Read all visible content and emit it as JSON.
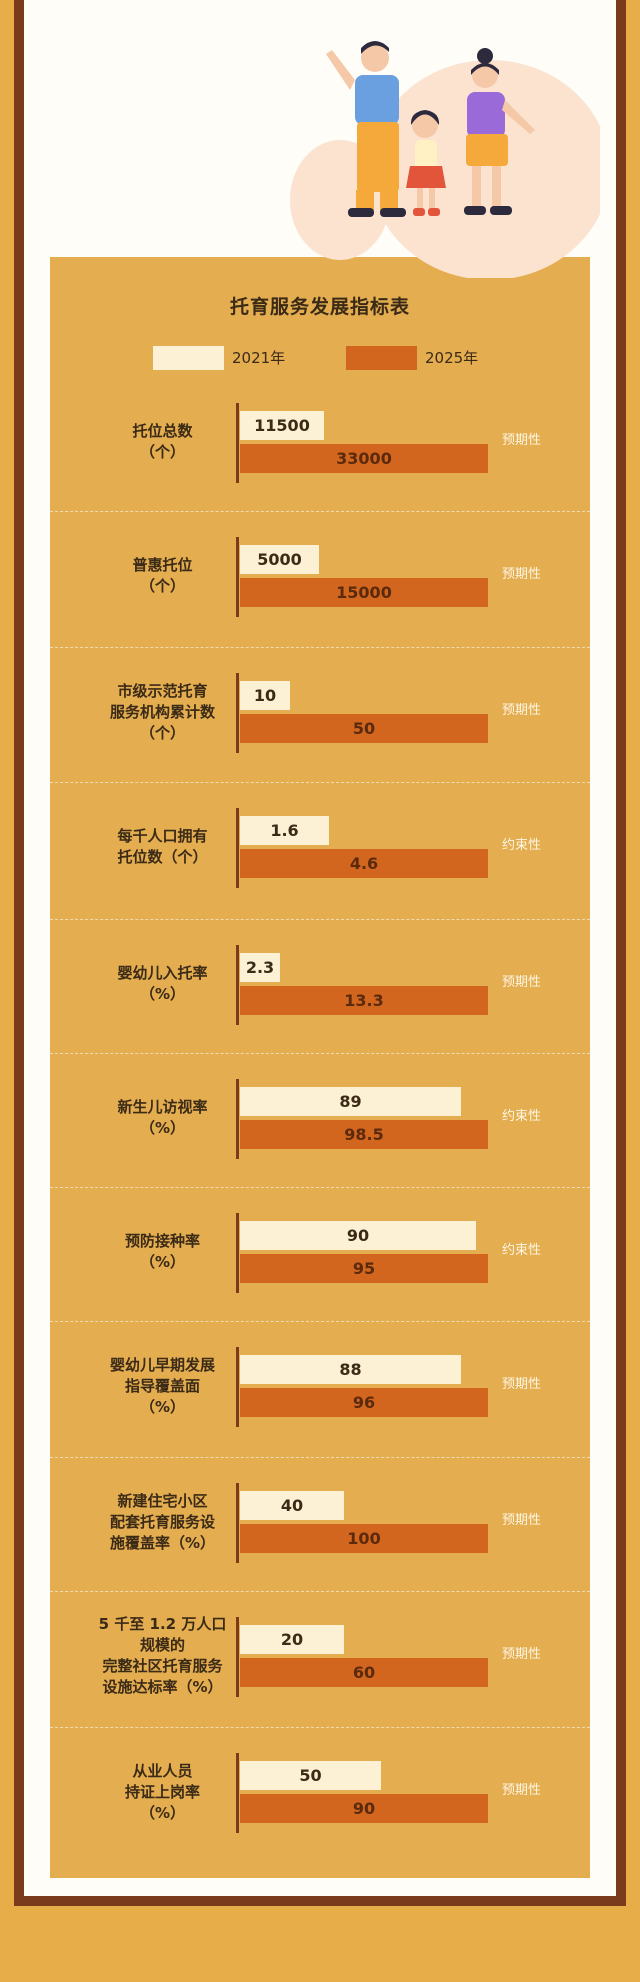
{
  "colors": {
    "background": "#e7ad48",
    "frame": "#7a3a1c",
    "paper": "#fffdf8",
    "panel": "#e3ad50",
    "bar_2021": "#fcf1d4",
    "bar_2025": "#d2661e"
  },
  "illustration": {
    "name": "family-illustration"
  },
  "chart_data": {
    "type": "bar",
    "title": "托育服务发展指标表",
    "legend": [
      "2021年",
      "2025年"
    ],
    "categories": [
      "托位总数\n（个）",
      "普惠托位\n（个）",
      "市级示范托育\n服务机构累计数\n（个）",
      "每千人口拥有\n托位数（个）",
      "婴幼儿入托率\n（%）",
      "新生儿访视率\n（%）",
      "预防接种率\n（%）",
      "婴幼儿早期发展\n指导覆盖面\n（%）",
      "新建住宅小区\n配套托育服务设\n施覆盖率（%）",
      "5 千至 1.2 万人口\n规模的\n完整社区托育服务\n设施达标率（%）",
      "从业人员\n持证上岗率\n（%）"
    ],
    "series": [
      {
        "name": "2021年",
        "values": [
          "11500",
          "5000",
          "10",
          "1.6",
          "2.3",
          "89",
          "90",
          "88",
          "40",
          "20",
          "50"
        ]
      },
      {
        "name": "2025年",
        "values": [
          "33000",
          "15000",
          "50",
          "4.6",
          "13.3",
          "98.5",
          "95",
          "96",
          "100",
          "60",
          "90"
        ]
      }
    ],
    "property": [
      "预期性",
      "预期性",
      "预期性",
      "约束性",
      "预期性",
      "约束性",
      "约束性",
      "预期性",
      "预期性",
      "预期性",
      "预期性"
    ],
    "bar_fill_2021": [
      0.34,
      0.32,
      0.2,
      0.36,
      0.04,
      0.89,
      0.95,
      0.89,
      0.42,
      0.42,
      0.57
    ],
    "bar_fill_2025": [
      1,
      1,
      1,
      1,
      1,
      1,
      1,
      1,
      1,
      1,
      1
    ]
  }
}
